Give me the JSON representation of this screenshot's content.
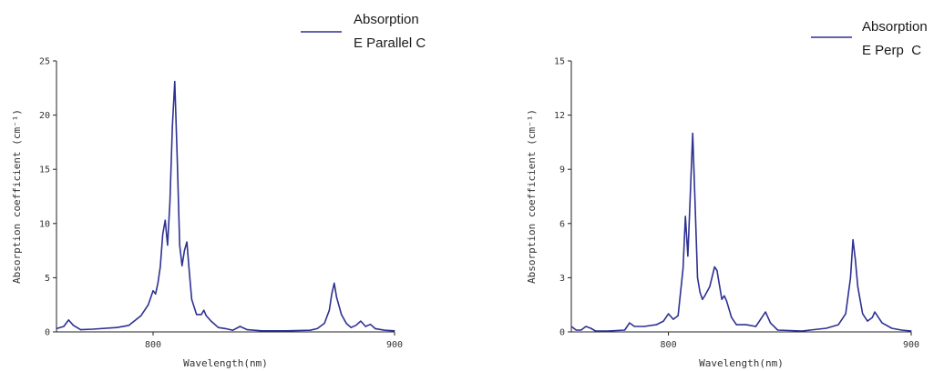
{
  "chart_data": [
    {
      "type": "line",
      "xlabel": "Wavelength(nm)",
      "ylabel": "Absorption coefficient (cm⁻¹)",
      "xlim": [
        760,
        900
      ],
      "ylim": [
        0,
        25
      ],
      "xticks": [
        800,
        900
      ],
      "yticks": [
        0,
        5,
        10,
        15,
        20,
        25
      ],
      "grid": false,
      "legend_position": "top-center",
      "color": "#2e3192",
      "series": [
        {
          "name_lines": [
            "Absorption",
            "E Parallel C"
          ],
          "points": [
            [
              760,
              0.3
            ],
            [
              763,
              0.5
            ],
            [
              765,
              1.1
            ],
            [
              767,
              0.6
            ],
            [
              770,
              0.2
            ],
            [
              775,
              0.25
            ],
            [
              785,
              0.4
            ],
            [
              790,
              0.6
            ],
            [
              795,
              1.5
            ],
            [
              798,
              2.5
            ],
            [
              800,
              3.8
            ],
            [
              801,
              3.5
            ],
            [
              802,
              4.5
            ],
            [
              803,
              6.0
            ],
            [
              804,
              9.0
            ],
            [
              805,
              10.3
            ],
            [
              806,
              8.0
            ],
            [
              807,
              12.0
            ],
            [
              808,
              19.0
            ],
            [
              809,
              23.1
            ],
            [
              810,
              16.0
            ],
            [
              811,
              8.0
            ],
            [
              812,
              6.1
            ],
            [
              813,
              7.5
            ],
            [
              814,
              8.3
            ],
            [
              815,
              5.5
            ],
            [
              816,
              3.0
            ],
            [
              818,
              1.6
            ],
            [
              820,
              1.6
            ],
            [
              821,
              2.0
            ],
            [
              822,
              1.5
            ],
            [
              824,
              1.0
            ],
            [
              827,
              0.4
            ],
            [
              830,
              0.3
            ],
            [
              833,
              0.15
            ],
            [
              836,
              0.5
            ],
            [
              839,
              0.2
            ],
            [
              845,
              0.1
            ],
            [
              855,
              0.1
            ],
            [
              865,
              0.15
            ],
            [
              868,
              0.3
            ],
            [
              871,
              0.8
            ],
            [
              873,
              2.0
            ],
            [
              874,
              3.5
            ],
            [
              875,
              4.5
            ],
            [
              876,
              3.2
            ],
            [
              878,
              1.6
            ],
            [
              880,
              0.8
            ],
            [
              882,
              0.4
            ],
            [
              884,
              0.6
            ],
            [
              886,
              1.0
            ],
            [
              888,
              0.5
            ],
            [
              890,
              0.7
            ],
            [
              892,
              0.3
            ],
            [
              896,
              0.15
            ],
            [
              900,
              0.1
            ]
          ]
        }
      ]
    },
    {
      "type": "line",
      "xlabel": "Wavelength(nm)",
      "ylabel": "Absorption coefficient (cm⁻¹)",
      "xlim": [
        760,
        900
      ],
      "ylim": [
        0,
        15
      ],
      "xticks": [
        800,
        900
      ],
      "yticks": [
        0,
        3,
        6,
        9,
        12,
        15
      ],
      "grid": false,
      "legend_position": "top-right",
      "color": "#2e3192",
      "series": [
        {
          "name_lines": [
            "Absorption",
            "E Perp  C"
          ],
          "points": [
            [
              760,
              0.3
            ],
            [
              762,
              0.1
            ],
            [
              764,
              0.1
            ],
            [
              766,
              0.3
            ],
            [
              768,
              0.2
            ],
            [
              770,
              0.05
            ],
            [
              775,
              0.05
            ],
            [
              782,
              0.1
            ],
            [
              784,
              0.5
            ],
            [
              786,
              0.3
            ],
            [
              790,
              0.3
            ],
            [
              795,
              0.4
            ],
            [
              798,
              0.6
            ],
            [
              800,
              1.0
            ],
            [
              802,
              0.7
            ],
            [
              804,
              0.9
            ],
            [
              806,
              3.5
            ],
            [
              807,
              6.4
            ],
            [
              808,
              4.2
            ],
            [
              809,
              7.5
            ],
            [
              810,
              11.0
            ],
            [
              811,
              7.0
            ],
            [
              812,
              3.0
            ],
            [
              813,
              2.2
            ],
            [
              814,
              1.8
            ],
            [
              815,
              2.0
            ],
            [
              817,
              2.5
            ],
            [
              819,
              3.6
            ],
            [
              820,
              3.4
            ],
            [
              821,
              2.6
            ],
            [
              822,
              1.8
            ],
            [
              823,
              2.0
            ],
            [
              824,
              1.7
            ],
            [
              826,
              0.8
            ],
            [
              828,
              0.4
            ],
            [
              832,
              0.4
            ],
            [
              836,
              0.3
            ],
            [
              838,
              0.7
            ],
            [
              840,
              1.1
            ],
            [
              842,
              0.5
            ],
            [
              845,
              0.1
            ],
            [
              855,
              0.05
            ],
            [
              865,
              0.2
            ],
            [
              870,
              0.4
            ],
            [
              873,
              1.0
            ],
            [
              875,
              3.0
            ],
            [
              876,
              5.1
            ],
            [
              877,
              4.0
            ],
            [
              878,
              2.5
            ],
            [
              880,
              1.0
            ],
            [
              882,
              0.6
            ],
            [
              884,
              0.8
            ],
            [
              885,
              1.1
            ],
            [
              886,
              0.9
            ],
            [
              888,
              0.5
            ],
            [
              892,
              0.2
            ],
            [
              896,
              0.1
            ],
            [
              900,
              0.05
            ]
          ]
        }
      ]
    }
  ]
}
